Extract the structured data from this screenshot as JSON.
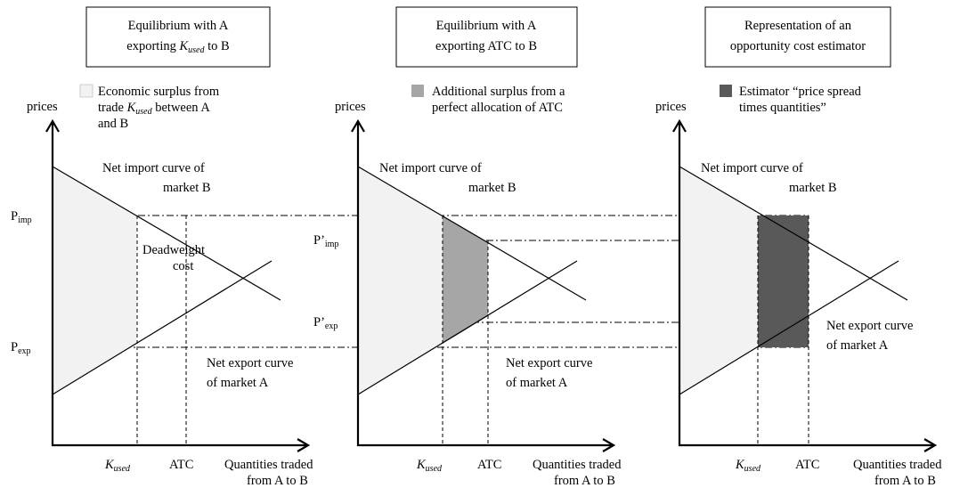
{
  "panels": [
    {
      "title": {
        "line1": "Equilibrium with A",
        "line2a": "exporting ",
        "line2k": "K",
        "line2sub": "used",
        "line2b": " to B"
      },
      "legend": {
        "line1": "Economic surplus from",
        "line2a": "trade ",
        "line2k": "K",
        "line2sub": "used",
        "line2b": " between A",
        "line3": "and B"
      },
      "y_axis": "prices",
      "import_curve": [
        "Net import curve  of",
        "market B"
      ],
      "export_curve": [
        "Net export curve",
        "of market A"
      ],
      "p_imp": {
        "base": "P",
        "sub": "imp"
      },
      "p_exp": {
        "base": "P",
        "sub": "exp"
      },
      "deadweight": [
        "Deadweight",
        "cost"
      ],
      "k_used": {
        "base": "K",
        "sub": "used"
      },
      "atc": "ATC",
      "x_axis": [
        "Quantities traded",
        "from A to B"
      ]
    },
    {
      "title": {
        "line1": "Equilibrium with A",
        "line2": "exporting ATC to B"
      },
      "legend": {
        "line1": "Additional surplus from a",
        "line2": "perfect allocation of ATC"
      },
      "y_axis": "prices",
      "import_curve": [
        "Net import curve  of",
        "market B"
      ],
      "export_curve": [
        "Net export curve",
        "of market A"
      ],
      "p_imp": {
        "base": "P’",
        "sub": "imp"
      },
      "p_exp": {
        "base": "P’",
        "sub": "exp"
      },
      "k_used": {
        "base": "K",
        "sub": "used"
      },
      "atc": "ATC",
      "x_axis": [
        "Quantities traded",
        "from A to B"
      ]
    },
    {
      "title": {
        "line1": "Representation of an",
        "line2": "opportunity cost estimator"
      },
      "legend": {
        "line1": "Estimator “price spread",
        "line2": "times quantities”"
      },
      "y_axis": "prices",
      "import_curve": [
        "Net import curve  of",
        "market B"
      ],
      "export_curve": [
        "Net export curve",
        "of market A"
      ],
      "k_used": {
        "base": "K",
        "sub": "used"
      },
      "atc": "ATC",
      "x_axis": [
        "Quantities traded",
        "from A to B"
      ]
    }
  ]
}
